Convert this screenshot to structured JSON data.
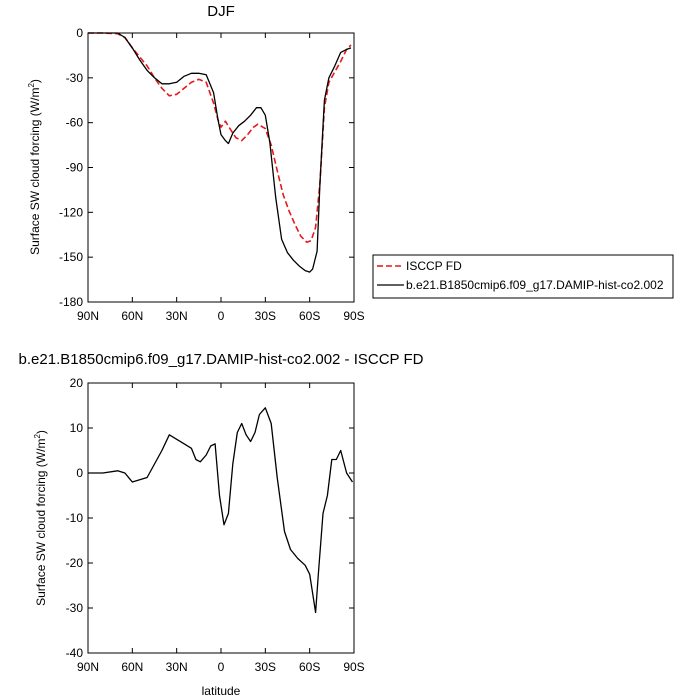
{
  "chart_data": [
    {
      "type": "line",
      "title": "DJF",
      "xlabel": "",
      "ylabel": "Surface SW cloud forcing (W/m",
      "ylabel_sup": "2",
      "ylabel_close": ")",
      "xlim": [
        90,
        -90
      ],
      "ylim": [
        -180,
        0
      ],
      "x_ticks": [
        90,
        60,
        30,
        0,
        -30,
        -60,
        -90
      ],
      "x_tick_labels": [
        "90N",
        "60N",
        "30N",
        "0",
        "30S",
        "60S",
        "90S"
      ],
      "y_ticks": [
        0,
        -30,
        -60,
        -90,
        -120,
        -150,
        -180
      ],
      "y_tick_labels": [
        "0",
        "-30",
        "-60",
        "-90",
        "-120",
        "-150",
        "-180"
      ],
      "legend": {
        "placement": "right"
      },
      "series": [
        {
          "name": "ISCCP FD",
          "color": "#e41a1c",
          "dash": "dashed",
          "points": [
            [
              90,
              0
            ],
            [
              80,
              0
            ],
            [
              70,
              -0.5
            ],
            [
              65,
              -3
            ],
            [
              60,
              -10
            ],
            [
              55,
              -16
            ],
            [
              50,
              -22
            ],
            [
              45,
              -30
            ],
            [
              40,
              -37
            ],
            [
              35,
              -42
            ],
            [
              30,
              -41
            ],
            [
              25,
              -37
            ],
            [
              20,
              -33
            ],
            [
              15,
              -31
            ],
            [
              10,
              -33
            ],
            [
              5,
              -47
            ],
            [
              2,
              -58
            ],
            [
              0,
              -63
            ],
            [
              -3,
              -59
            ],
            [
              -6,
              -64
            ],
            [
              -10,
              -70
            ],
            [
              -14,
              -72
            ],
            [
              -18,
              -68
            ],
            [
              -22,
              -63
            ],
            [
              -25,
              -61
            ],
            [
              -30,
              -64
            ],
            [
              -34,
              -75
            ],
            [
              -38,
              -92
            ],
            [
              -42,
              -108
            ],
            [
              -46,
              -119
            ],
            [
              -50,
              -128
            ],
            [
              -54,
              -136
            ],
            [
              -58,
              -140
            ],
            [
              -61,
              -139
            ],
            [
              -64,
              -130
            ],
            [
              -67,
              -100
            ],
            [
              -70,
              -50
            ],
            [
              -73,
              -33
            ],
            [
              -77,
              -26
            ],
            [
              -81,
              -19
            ],
            [
              -85,
              -11
            ],
            [
              -88,
              -8
            ]
          ]
        },
        {
          "name": "b.e21.B1850cmip6.f09_g17.DAMIP-hist-co2.002",
          "color": "#000000",
          "dash": "solid",
          "points": [
            [
              90,
              0
            ],
            [
              80,
              0
            ],
            [
              70,
              0
            ],
            [
              65,
              -3
            ],
            [
              60,
              -10
            ],
            [
              55,
              -18
            ],
            [
              50,
              -25
            ],
            [
              45,
              -30
            ],
            [
              40,
              -34
            ],
            [
              35,
              -34
            ],
            [
              30,
              -33
            ],
            [
              25,
              -29
            ],
            [
              20,
              -27
            ],
            [
              15,
              -27
            ],
            [
              10,
              -28
            ],
            [
              5,
              -40
            ],
            [
              2,
              -58
            ],
            [
              0,
              -68
            ],
            [
              -3,
              -72
            ],
            [
              -5,
              -74
            ],
            [
              -8,
              -67
            ],
            [
              -12,
              -62
            ],
            [
              -16,
              -59
            ],
            [
              -20,
              -55
            ],
            [
              -24,
              -50
            ],
            [
              -27,
              -50
            ],
            [
              -30,
              -55
            ],
            [
              -33,
              -73
            ],
            [
              -37,
              -110
            ],
            [
              -41,
              -138
            ],
            [
              -45,
              -147
            ],
            [
              -49,
              -152
            ],
            [
              -53,
              -156
            ],
            [
              -57,
              -159
            ],
            [
              -60,
              -160
            ],
            [
              -62,
              -158
            ],
            [
              -65,
              -146
            ],
            [
              -67,
              -100
            ],
            [
              -70,
              -45
            ],
            [
              -73,
              -30
            ],
            [
              -77,
              -22
            ],
            [
              -81,
              -13
            ],
            [
              -85,
              -11
            ],
            [
              -88,
              -10
            ]
          ]
        }
      ]
    },
    {
      "type": "line",
      "title": "b.e21.B1850cmip6.f09_g17.DAMIP-hist-co2.002 - ISCCP FD",
      "xlabel": "latitude",
      "ylabel": "Surface SW cloud forcing (W/m",
      "ylabel_sup": "2",
      "ylabel_close": ")",
      "xlim": [
        90,
        -90
      ],
      "ylim": [
        -40,
        20
      ],
      "x_ticks": [
        90,
        60,
        30,
        0,
        -30,
        -60,
        -90
      ],
      "x_tick_labels": [
        "90N",
        "60N",
        "30N",
        "0",
        "30S",
        "60S",
        "90S"
      ],
      "y_ticks": [
        20,
        10,
        0,
        -10,
        -20,
        -30,
        -40
      ],
      "y_tick_labels": [
        "20",
        "10",
        "0",
        "-10",
        "-20",
        "-30",
        "-40"
      ],
      "series": [
        {
          "color": "#000000",
          "dash": "solid",
          "points": [
            [
              90,
              0
            ],
            [
              80,
              0
            ],
            [
              70,
              0.5
            ],
            [
              65,
              0
            ],
            [
              60,
              -2
            ],
            [
              55,
              -1.5
            ],
            [
              50,
              -1
            ],
            [
              45,
              2
            ],
            [
              40,
              5
            ],
            [
              35,
              8.5
            ],
            [
              30,
              7.5
            ],
            [
              25,
              6.5
            ],
            [
              20,
              5.5
            ],
            [
              17,
              3
            ],
            [
              14,
              2.5
            ],
            [
              10,
              4
            ],
            [
              7,
              6
            ],
            [
              4,
              6.5
            ],
            [
              1,
              -5
            ],
            [
              -2,
              -11.5
            ],
            [
              -5,
              -9
            ],
            [
              -8,
              2
            ],
            [
              -11,
              9
            ],
            [
              -14,
              11
            ],
            [
              -17,
              8.5
            ],
            [
              -20,
              7
            ],
            [
              -23,
              9
            ],
            [
              -26,
              13
            ],
            [
              -30,
              14.5
            ],
            [
              -34,
              11
            ],
            [
              -38,
              -1
            ],
            [
              -43,
              -13
            ],
            [
              -47,
              -17
            ],
            [
              -52,
              -19
            ],
            [
              -57,
              -20.5
            ],
            [
              -60,
              -22.5
            ],
            [
              -64,
              -31
            ],
            [
              -66,
              -22
            ],
            [
              -69,
              -9
            ],
            [
              -72,
              -5
            ],
            [
              -75,
              3
            ],
            [
              -78,
              3
            ],
            [
              -81,
              5
            ],
            [
              -85,
              0
            ],
            [
              -89,
              -2
            ]
          ]
        }
      ]
    }
  ],
  "legend_labels": [
    "ISCCP FD",
    "b.e21.B1850cmip6.f09_g17.DAMIP-hist-co2.002"
  ],
  "bottom_xlabel": "latitude"
}
